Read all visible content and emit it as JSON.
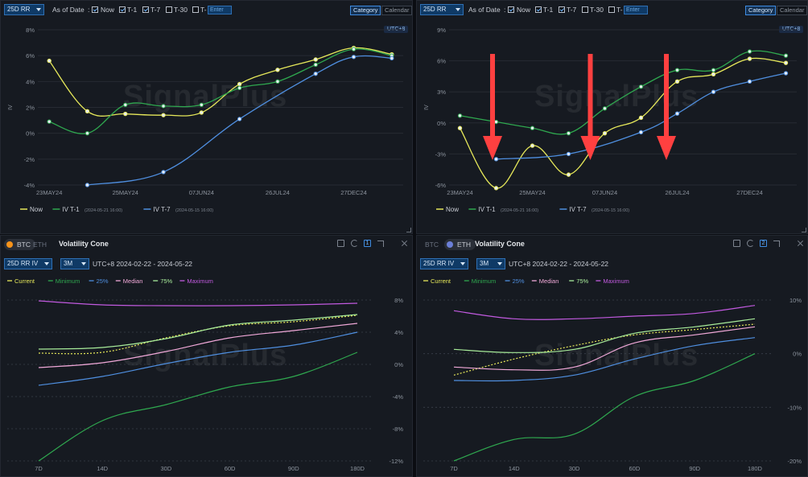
{
  "watermark": "SignalPlus",
  "colors": {
    "yellow": "#e6e85a",
    "green": "#2fa84f",
    "blue": "#4f8fe0",
    "pink": "#f0a8d8",
    "lightgreen": "#a8ec9a",
    "purple": "#c25ae0",
    "red": "#ff4040",
    "axis": "#8d949e"
  },
  "top_left": {
    "toolbar": {
      "metric": "25D RR",
      "as_of": "As of Date",
      "opts": [
        "Now",
        "T-1",
        "T-7",
        "T-30",
        "T-"
      ],
      "checked": [
        true,
        true,
        true,
        false,
        false
      ],
      "t_input": "Enter",
      "cat": "Category",
      "cal": "Calendar"
    },
    "utc": "UTC+8",
    "legend": [
      {
        "label": "Now",
        "sub": ""
      },
      {
        "label": "IV T-1",
        "sub": "(2024-05-21 16:00)"
      },
      {
        "label": "IV T-7",
        "sub": "(2024-05-15 16:00)"
      }
    ]
  },
  "top_right": {
    "toolbar": {
      "metric": "25D RR",
      "as_of": "As of Date",
      "opts": [
        "Now",
        "T-1",
        "T-7",
        "T-30",
        "T-"
      ],
      "checked": [
        true,
        true,
        true,
        false,
        false
      ],
      "t_input": "Enter",
      "cat": "Category",
      "cal": "Calendar"
    },
    "utc": "UTC+8",
    "legend": [
      {
        "label": "Now",
        "sub": ""
      },
      {
        "label": "IV T-1",
        "sub": "(2024-05-21 16:00)"
      },
      {
        "label": "IV T-7",
        "sub": "(2024-05-15 16:00)"
      }
    ]
  },
  "bottom_left": {
    "coins": [
      "BTC",
      "ETH"
    ],
    "active_coin": "BTC",
    "title": "Volatility Cone",
    "panel_num": "1",
    "metric": "25D RR IV",
    "period": "3M",
    "range": "UTC+8 2024-02-22 - 2024-05-22",
    "legend": [
      "Current",
      "Minimum",
      "25%",
      "Median",
      "75%",
      "Maximum"
    ]
  },
  "bottom_right": {
    "coins": [
      "BTC",
      "ETH"
    ],
    "active_coin": "ETH",
    "title": "Volatility Cone",
    "panel_num": "2",
    "metric": "25D RR IV",
    "period": "3M",
    "range": "UTC+8 2024-02-22 - 2024-05-22",
    "legend": [
      "Current",
      "Minimum",
      "25%",
      "Median",
      "75%",
      "Maximum"
    ]
  },
  "chart_data": [
    {
      "type": "line",
      "id": "btc-term",
      "categories": [
        "23MAY24",
        "25MAY24",
        "07JUN24",
        "26JUL24",
        "27DEC24"
      ],
      "ylabel": "IV",
      "ylim": [
        -4,
        8
      ],
      "yticks": [
        "-4%",
        "-2%",
        "0%",
        "2%",
        "4%",
        "6%",
        "8%"
      ],
      "series": [
        {
          "name": "Now",
          "color": "yellow",
          "x": [
            0,
            0.5,
            1,
            1.5,
            2,
            2.5,
            3,
            3.5,
            4,
            4.5
          ],
          "values": [
            5.6,
            1.7,
            1.5,
            1.4,
            1.6,
            3.8,
            4.9,
            5.7,
            6.6,
            6.1
          ]
        },
        {
          "name": "IV T-1",
          "color": "green",
          "x": [
            0,
            0.5,
            1,
            1.5,
            2,
            2.5,
            3,
            3.5,
            4,
            4.5
          ],
          "values": [
            0.9,
            0.0,
            2.2,
            2.1,
            2.2,
            3.5,
            4.0,
            5.3,
            6.5,
            6.0
          ]
        },
        {
          "name": "IV T-7",
          "color": "blue",
          "x": [
            0.5,
            1.5,
            2.5,
            3.5,
            4,
            4.5
          ],
          "values": [
            -4.0,
            -3.0,
            1.1,
            4.6,
            5.9,
            5.8
          ]
        }
      ]
    },
    {
      "type": "line",
      "id": "eth-term",
      "categories": [
        "23MAY24",
        "25MAY24",
        "07JUN24",
        "26JUL24",
        "27DEC24"
      ],
      "ylabel": "IV",
      "ylim": [
        -6,
        9
      ],
      "yticks": [
        "-6%",
        "-3%",
        "0%",
        "3%",
        "6%",
        "9%"
      ],
      "series": [
        {
          "name": "Now",
          "color": "yellow",
          "x": [
            0,
            0.5,
            1,
            1.5,
            2,
            2.5,
            3,
            3.5,
            4,
            4.5
          ],
          "values": [
            -0.5,
            -6.3,
            -2.2,
            -5.0,
            -1.0,
            0.5,
            4.0,
            4.7,
            6.2,
            5.8
          ]
        },
        {
          "name": "IV T-1",
          "color": "green",
          "x": [
            0,
            0.5,
            1,
            1.5,
            2,
            2.5,
            3,
            3.5,
            4,
            4.5
          ],
          "values": [
            0.7,
            0.1,
            -0.5,
            -1.0,
            1.4,
            3.5,
            5.1,
            5.1,
            6.9,
            6.5
          ]
        },
        {
          "name": "IV T-7",
          "color": "blue",
          "x": [
            0.5,
            1.5,
            2.5,
            3,
            3.5,
            4,
            4.5
          ],
          "values": [
            -3.5,
            -3.0,
            -0.9,
            0.9,
            3.0,
            4.0,
            4.8
          ]
        }
      ],
      "arrows": [
        0.45,
        1.8,
        2.85
      ]
    },
    {
      "type": "line",
      "id": "btc-cone",
      "categories": [
        "7D",
        "14D",
        "30D",
        "60D",
        "90D",
        "180D"
      ],
      "ylim": [
        -12,
        8
      ],
      "yticks": [
        "-12%",
        "-8%",
        "-4%",
        "0%",
        "4%",
        "8%"
      ],
      "series": [
        {
          "name": "Current",
          "color": "yellow",
          "dashed": true,
          "values": [
            1.4,
            1.5,
            3.3,
            4.8,
            5.3,
            6.1
          ]
        },
        {
          "name": "Minimum",
          "color": "green",
          "values": [
            -12.0,
            -7.0,
            -5.0,
            -2.8,
            -1.5,
            1.5
          ]
        },
        {
          "name": "25%",
          "color": "blue",
          "values": [
            -2.6,
            -1.5,
            0.1,
            1.5,
            2.4,
            4.0
          ]
        },
        {
          "name": "Median",
          "color": "pink",
          "values": [
            -0.4,
            0.2,
            1.6,
            3.3,
            4.2,
            5.1
          ]
        },
        {
          "name": "75%",
          "color": "lightgreen",
          "values": [
            1.9,
            2.1,
            3.2,
            4.9,
            5.5,
            6.2
          ]
        },
        {
          "name": "Maximum",
          "color": "purple",
          "values": [
            7.9,
            7.4,
            7.3,
            7.3,
            7.4,
            7.6
          ]
        }
      ]
    },
    {
      "type": "line",
      "id": "eth-cone",
      "categories": [
        "7D",
        "14D",
        "30D",
        "60D",
        "90D",
        "180D"
      ],
      "ylim": [
        -20,
        10
      ],
      "yticks": [
        "-20%",
        "-10%",
        "0%",
        "10%"
      ],
      "series": [
        {
          "name": "Current",
          "color": "yellow",
          "dashed": true,
          "values": [
            -4.0,
            -1.0,
            1.5,
            3.5,
            4.5,
            5.5
          ]
        },
        {
          "name": "Minimum",
          "color": "green",
          "values": [
            -20.0,
            -16.0,
            -15.0,
            -8.0,
            -5.0,
            0.0
          ]
        },
        {
          "name": "25%",
          "color": "blue",
          "values": [
            -5.0,
            -5.0,
            -4.0,
            -1.0,
            1.5,
            3.0
          ]
        },
        {
          "name": "Median",
          "color": "pink",
          "values": [
            -2.5,
            -3.0,
            -2.5,
            2.0,
            3.5,
            5.0
          ]
        },
        {
          "name": "75%",
          "color": "lightgreen",
          "values": [
            0.8,
            0.2,
            0.8,
            3.8,
            5.0,
            6.5
          ]
        },
        {
          "name": "Maximum",
          "color": "purple",
          "values": [
            8.0,
            6.5,
            6.5,
            7.0,
            7.5,
            9.0
          ]
        }
      ]
    }
  ]
}
